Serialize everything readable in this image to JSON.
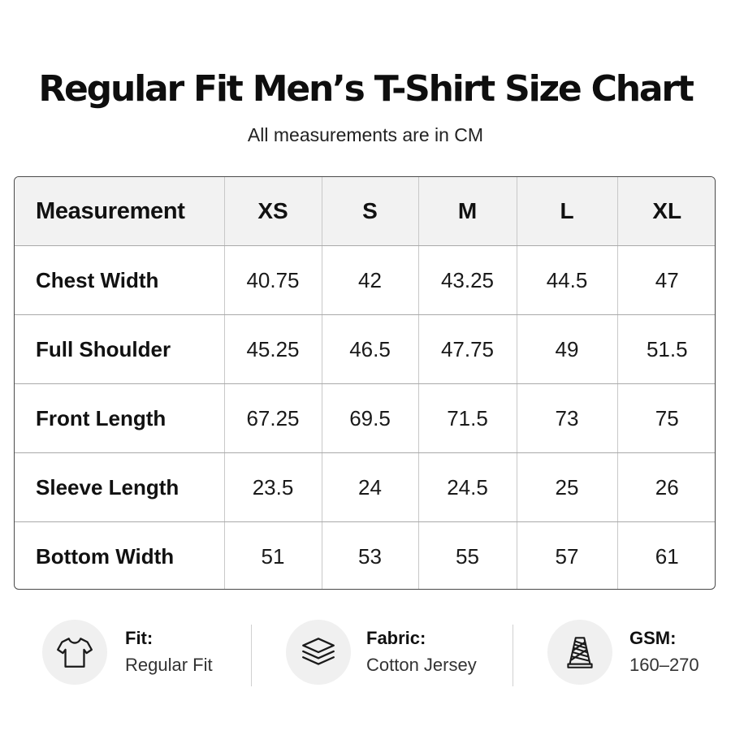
{
  "header": {
    "title": "Regular Fit Men’s T-Shirt Size Chart",
    "subtitle": "All measurements are in CM"
  },
  "table": {
    "corner_label": "Measurement",
    "sizes": [
      "XS",
      "S",
      "M",
      "L",
      "XL"
    ],
    "rows": [
      {
        "label": "Chest Width",
        "values": [
          "40.75",
          "42",
          "43.25",
          "44.5",
          "47"
        ]
      },
      {
        "label": "Full Shoulder",
        "values": [
          "45.25",
          "46.5",
          "47.75",
          "49",
          "51.5"
        ]
      },
      {
        "label": "Front Length",
        "values": [
          "67.25",
          "69.5",
          "71.5",
          "73",
          "75"
        ]
      },
      {
        "label": "Sleeve Length",
        "values": [
          "23.5",
          "24",
          "24.5",
          "25",
          "26"
        ]
      },
      {
        "label": "Bottom Width",
        "values": [
          "51",
          "53",
          "55",
          "57",
          "61"
        ]
      }
    ]
  },
  "features": [
    {
      "label": "Fit:",
      "value": "Regular Fit",
      "icon": "tshirt-icon"
    },
    {
      "label": "Fabric:",
      "value": "Cotton Jersey",
      "icon": "layers-icon"
    },
    {
      "label": "GSM:",
      "value": "160–270",
      "icon": "thread-spool-icon"
    }
  ],
  "colors": {
    "text": "#111111",
    "header_row_bg": "#f2f2f2",
    "icon_circle_bg": "#f0f0f0",
    "table_border": "#4a4a4a"
  }
}
